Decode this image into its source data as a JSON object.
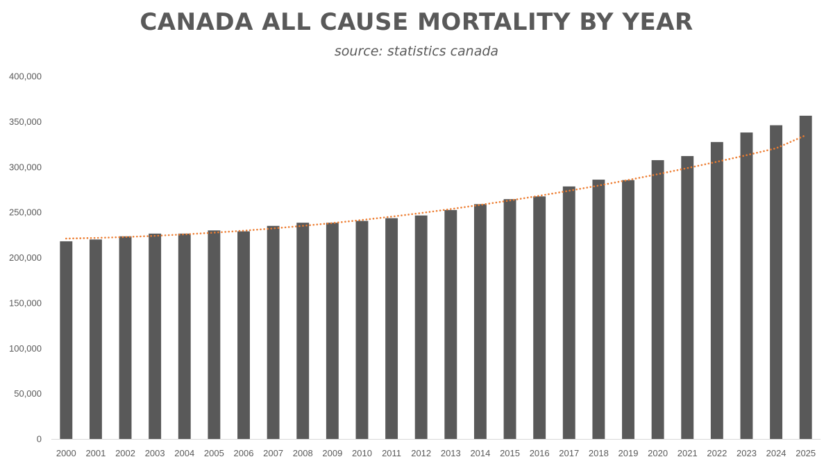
{
  "chart_data": {
    "type": "bar",
    "title": "CANADA ALL CAUSE MORTALITY BY YEAR",
    "subtitle": "source: statistics canada",
    "xlabel": "",
    "ylabel": "",
    "ylim": [
      0,
      400000
    ],
    "yticks": [
      0,
      50000,
      100000,
      150000,
      200000,
      250000,
      300000,
      350000,
      400000
    ],
    "ytick_labels": [
      "0",
      "50,000",
      "100,000",
      "150,000",
      "200,000",
      "250,000",
      "300,000",
      "350,000",
      "400,000"
    ],
    "grid": false,
    "legend": "none",
    "categories": [
      "2000",
      "2001",
      "2002",
      "2003",
      "2004",
      "2005",
      "2006",
      "2007",
      "2008",
      "2009",
      "2010",
      "2011",
      "2012",
      "2013",
      "2014",
      "2015",
      "2016",
      "2017",
      "2018",
      "2019",
      "2020",
      "2021",
      "2022",
      "2023",
      "2024",
      "2025"
    ],
    "series": [
      {
        "values": [
          218000,
          220000,
          223500,
          226500,
          226500,
          230000,
          229000,
          235000,
          238500,
          238500,
          240500,
          243500,
          246500,
          252500,
          259000,
          264500,
          267500,
          278500,
          286000,
          285500,
          307500,
          312000,
          327500,
          338000,
          346000,
          356500
        ],
        "color": "#595959"
      }
    ],
    "trendline": {
      "type": "polynomial",
      "style": "dotted",
      "color": "#ED7D31",
      "values": [
        221000,
        221700,
        222700,
        224000,
        225600,
        227500,
        229700,
        232200,
        235000,
        238100,
        241500,
        245200,
        249200,
        253500,
        258100,
        263000,
        268200,
        273700,
        279500,
        285600,
        292000,
        298700,
        305700,
        313000,
        320600,
        335000
      ]
    }
  }
}
